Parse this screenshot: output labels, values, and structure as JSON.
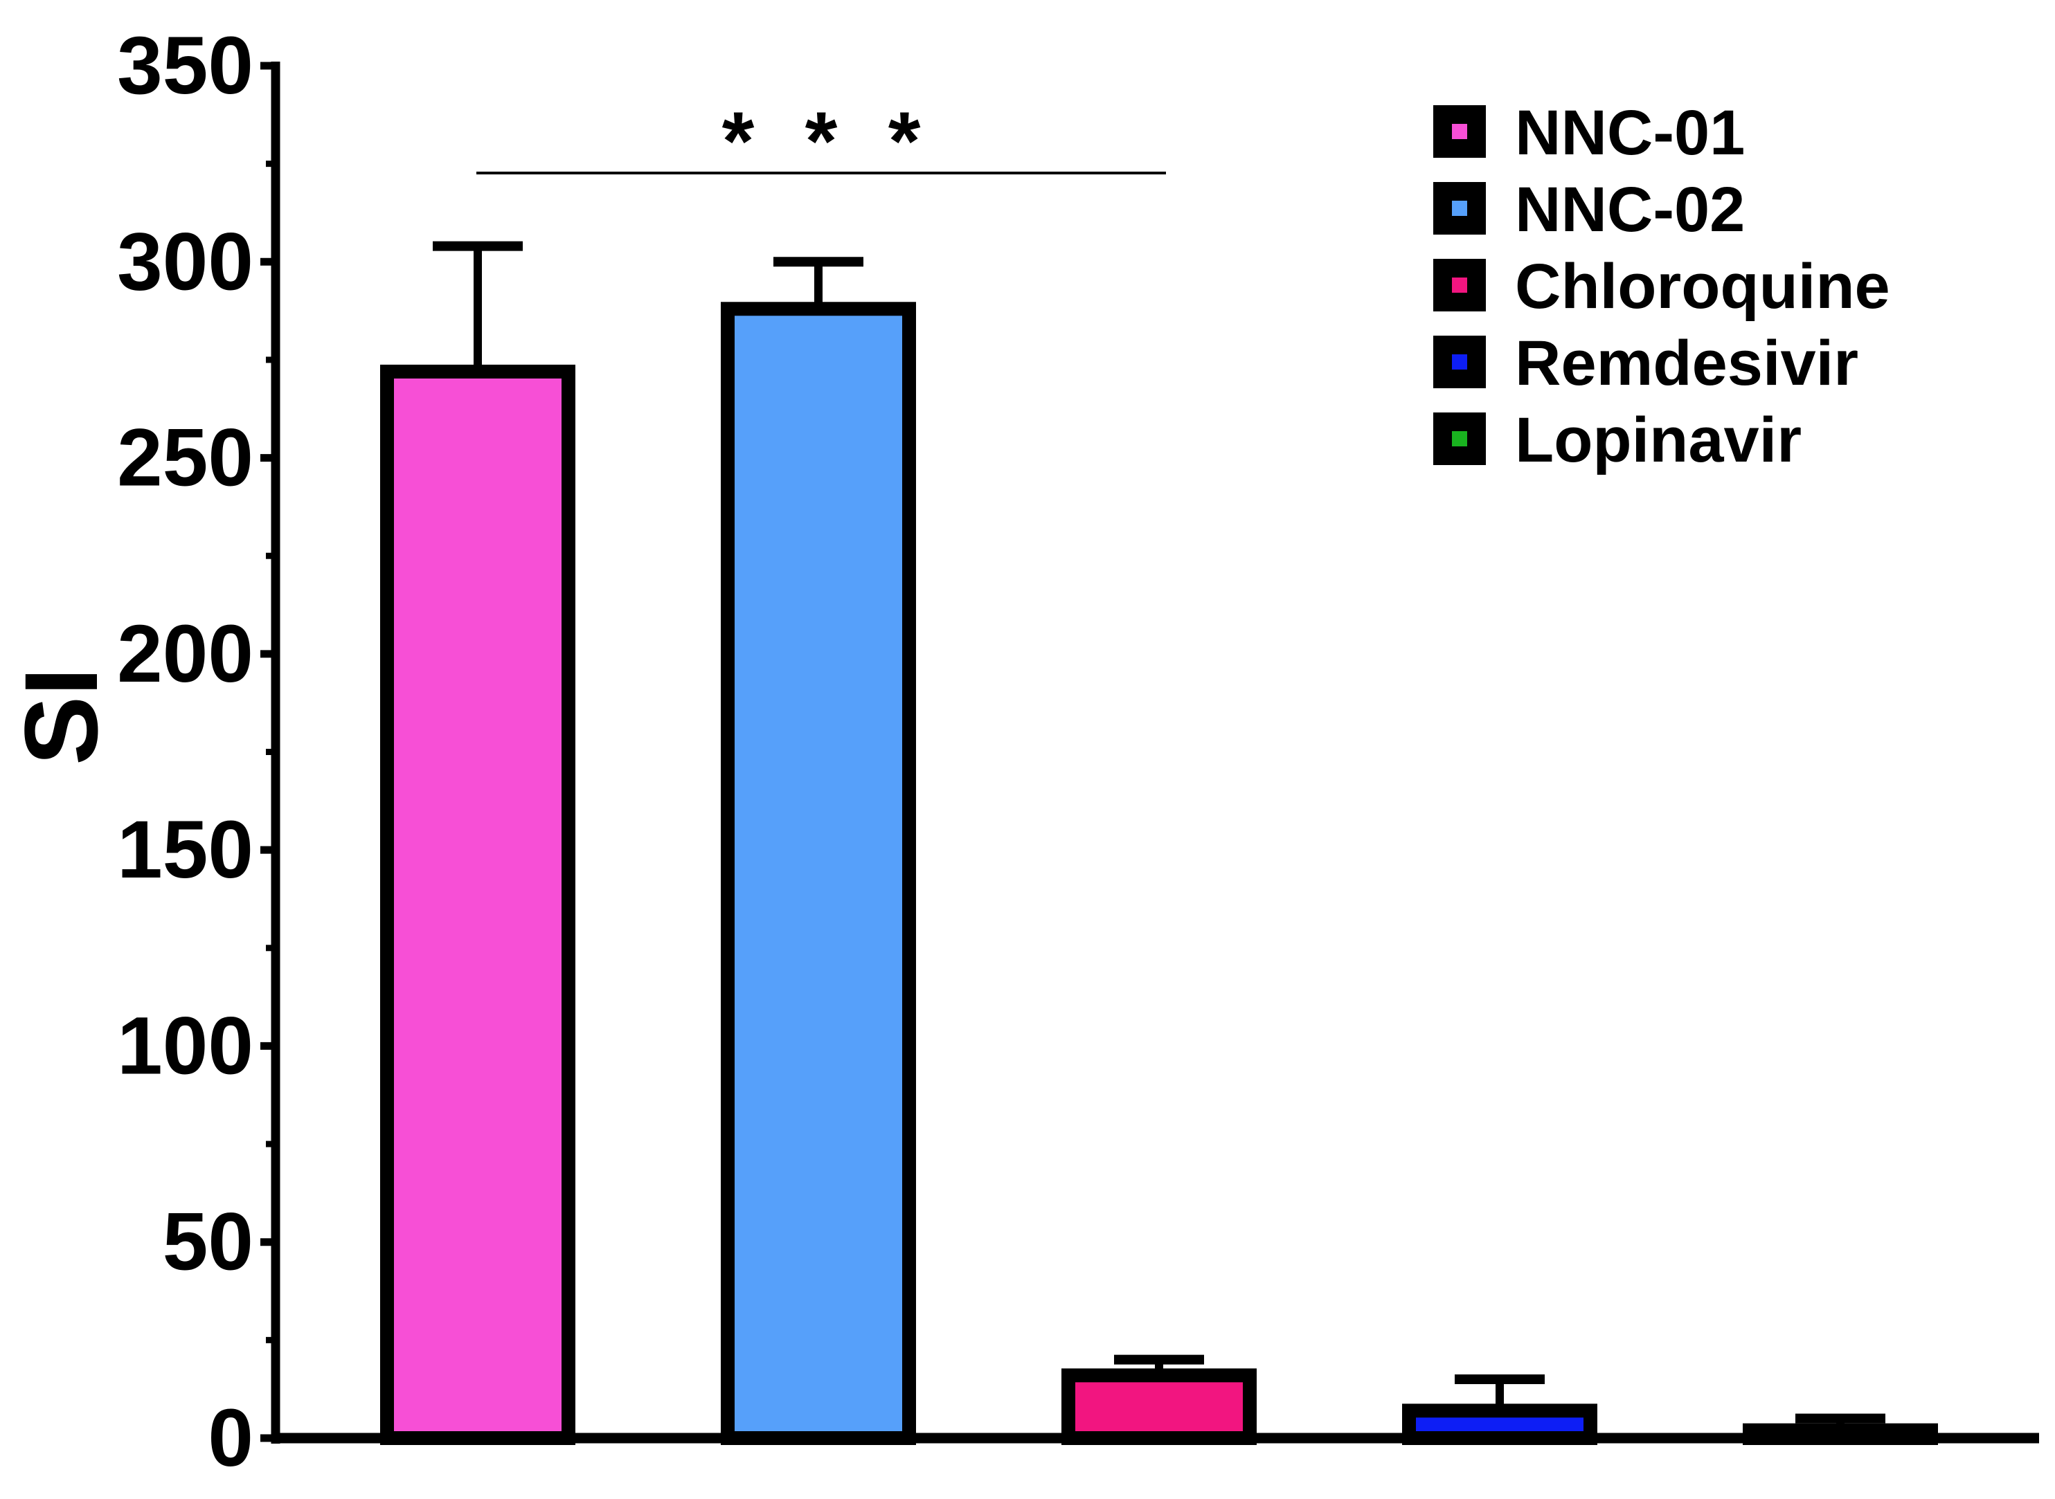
{
  "chart_data": {
    "type": "bar",
    "ylabel": "SI",
    "ylim": [
      0,
      350
    ],
    "yticks": [
      0,
      50,
      100,
      150,
      200,
      250,
      300,
      350
    ],
    "grid": false,
    "legend_position": "top-right",
    "series": [
      {
        "name": "NNC-01",
        "value": 272,
        "error": 32,
        "color": "#f74fd6"
      },
      {
        "name": "NNC-02",
        "value": 288,
        "error": 12,
        "color": "#56a0fa"
      },
      {
        "name": "Chloroquine",
        "value": 16,
        "error": 4,
        "color": "#f21580"
      },
      {
        "name": "Remdesivir",
        "value": 7,
        "error": 8,
        "color": "#0d1ef5"
      },
      {
        "name": "Lopinavir",
        "value": 2,
        "error": 3,
        "color": "#19b31f"
      }
    ],
    "annotations": [
      {
        "text": "* * *",
        "from_series": 0,
        "to_series": 2
      }
    ]
  }
}
